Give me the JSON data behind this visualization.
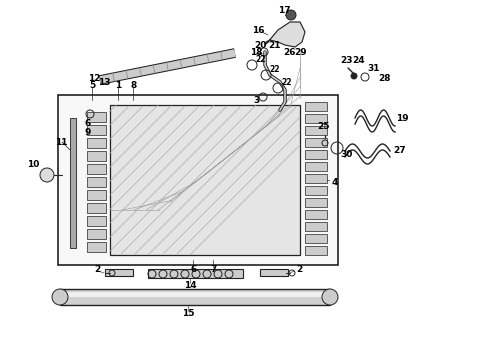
{
  "bg_color": "#ffffff",
  "line_color": "#222222",
  "label_color": "#000000",
  "label_fontsize": 6.5,
  "label_fontweight": "bold",
  "fig_w": 4.9,
  "fig_h": 3.6,
  "dpi": 100
}
